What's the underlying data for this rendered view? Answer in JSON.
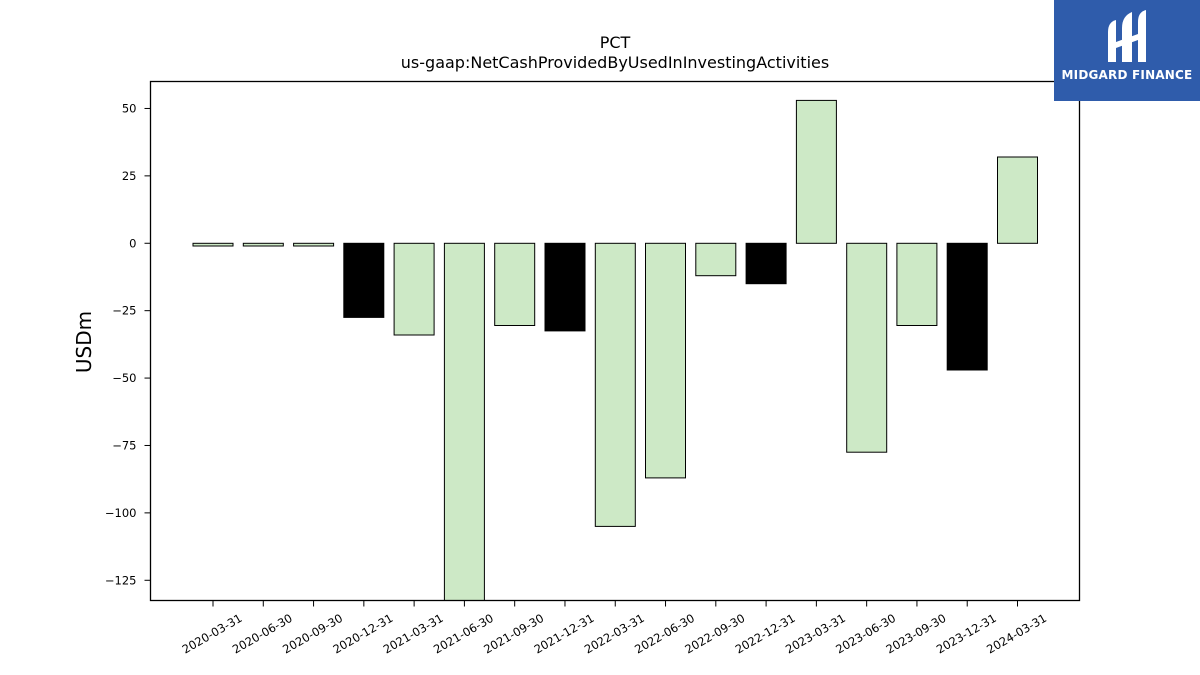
{
  "logo": {
    "text": "MIDGARD FINANCE",
    "bg": "#2f5cab"
  },
  "chart_data": {
    "type": "bar",
    "title": "PCT",
    "subtitle": "us-gaap:NetCashProvidedByUsedInInvestingActivities",
    "xlabel": "",
    "ylabel": "USDm",
    "ylim": [
      -132.5,
      60
    ],
    "yticks": [
      50,
      25,
      0,
      -25,
      -50,
      -75,
      -100,
      -125
    ],
    "ytick_labels": [
      "50",
      "25",
      "0",
      "−25",
      "−50",
      "−75",
      "−100",
      "−125"
    ],
    "grid": false,
    "categories": [
      "2020-03-31",
      "2020-06-30",
      "2020-09-30",
      "2020-12-31",
      "2021-03-31",
      "2021-06-30",
      "2021-09-30",
      "2021-12-31",
      "2022-03-31",
      "2022-06-30",
      "2022-09-30",
      "2022-12-31",
      "2023-03-31",
      "2023-06-30",
      "2023-09-30",
      "2023-12-31",
      "2024-03-31"
    ],
    "values": [
      -1,
      -1,
      -1,
      -27.5,
      -34,
      -132.5,
      -30.5,
      -32.5,
      -105,
      -87,
      -12,
      -15,
      53,
      -77.5,
      -30.5,
      -47,
      32
    ],
    "colors": [
      "#cde9c6",
      "#cde9c6",
      "#cde9c6",
      "#000000",
      "#cde9c6",
      "#cde9c6",
      "#cde9c6",
      "#000000",
      "#cde9c6",
      "#cde9c6",
      "#cde9c6",
      "#000000",
      "#cde9c6",
      "#cde9c6",
      "#cde9c6",
      "#000000",
      "#cde9c6"
    ]
  }
}
